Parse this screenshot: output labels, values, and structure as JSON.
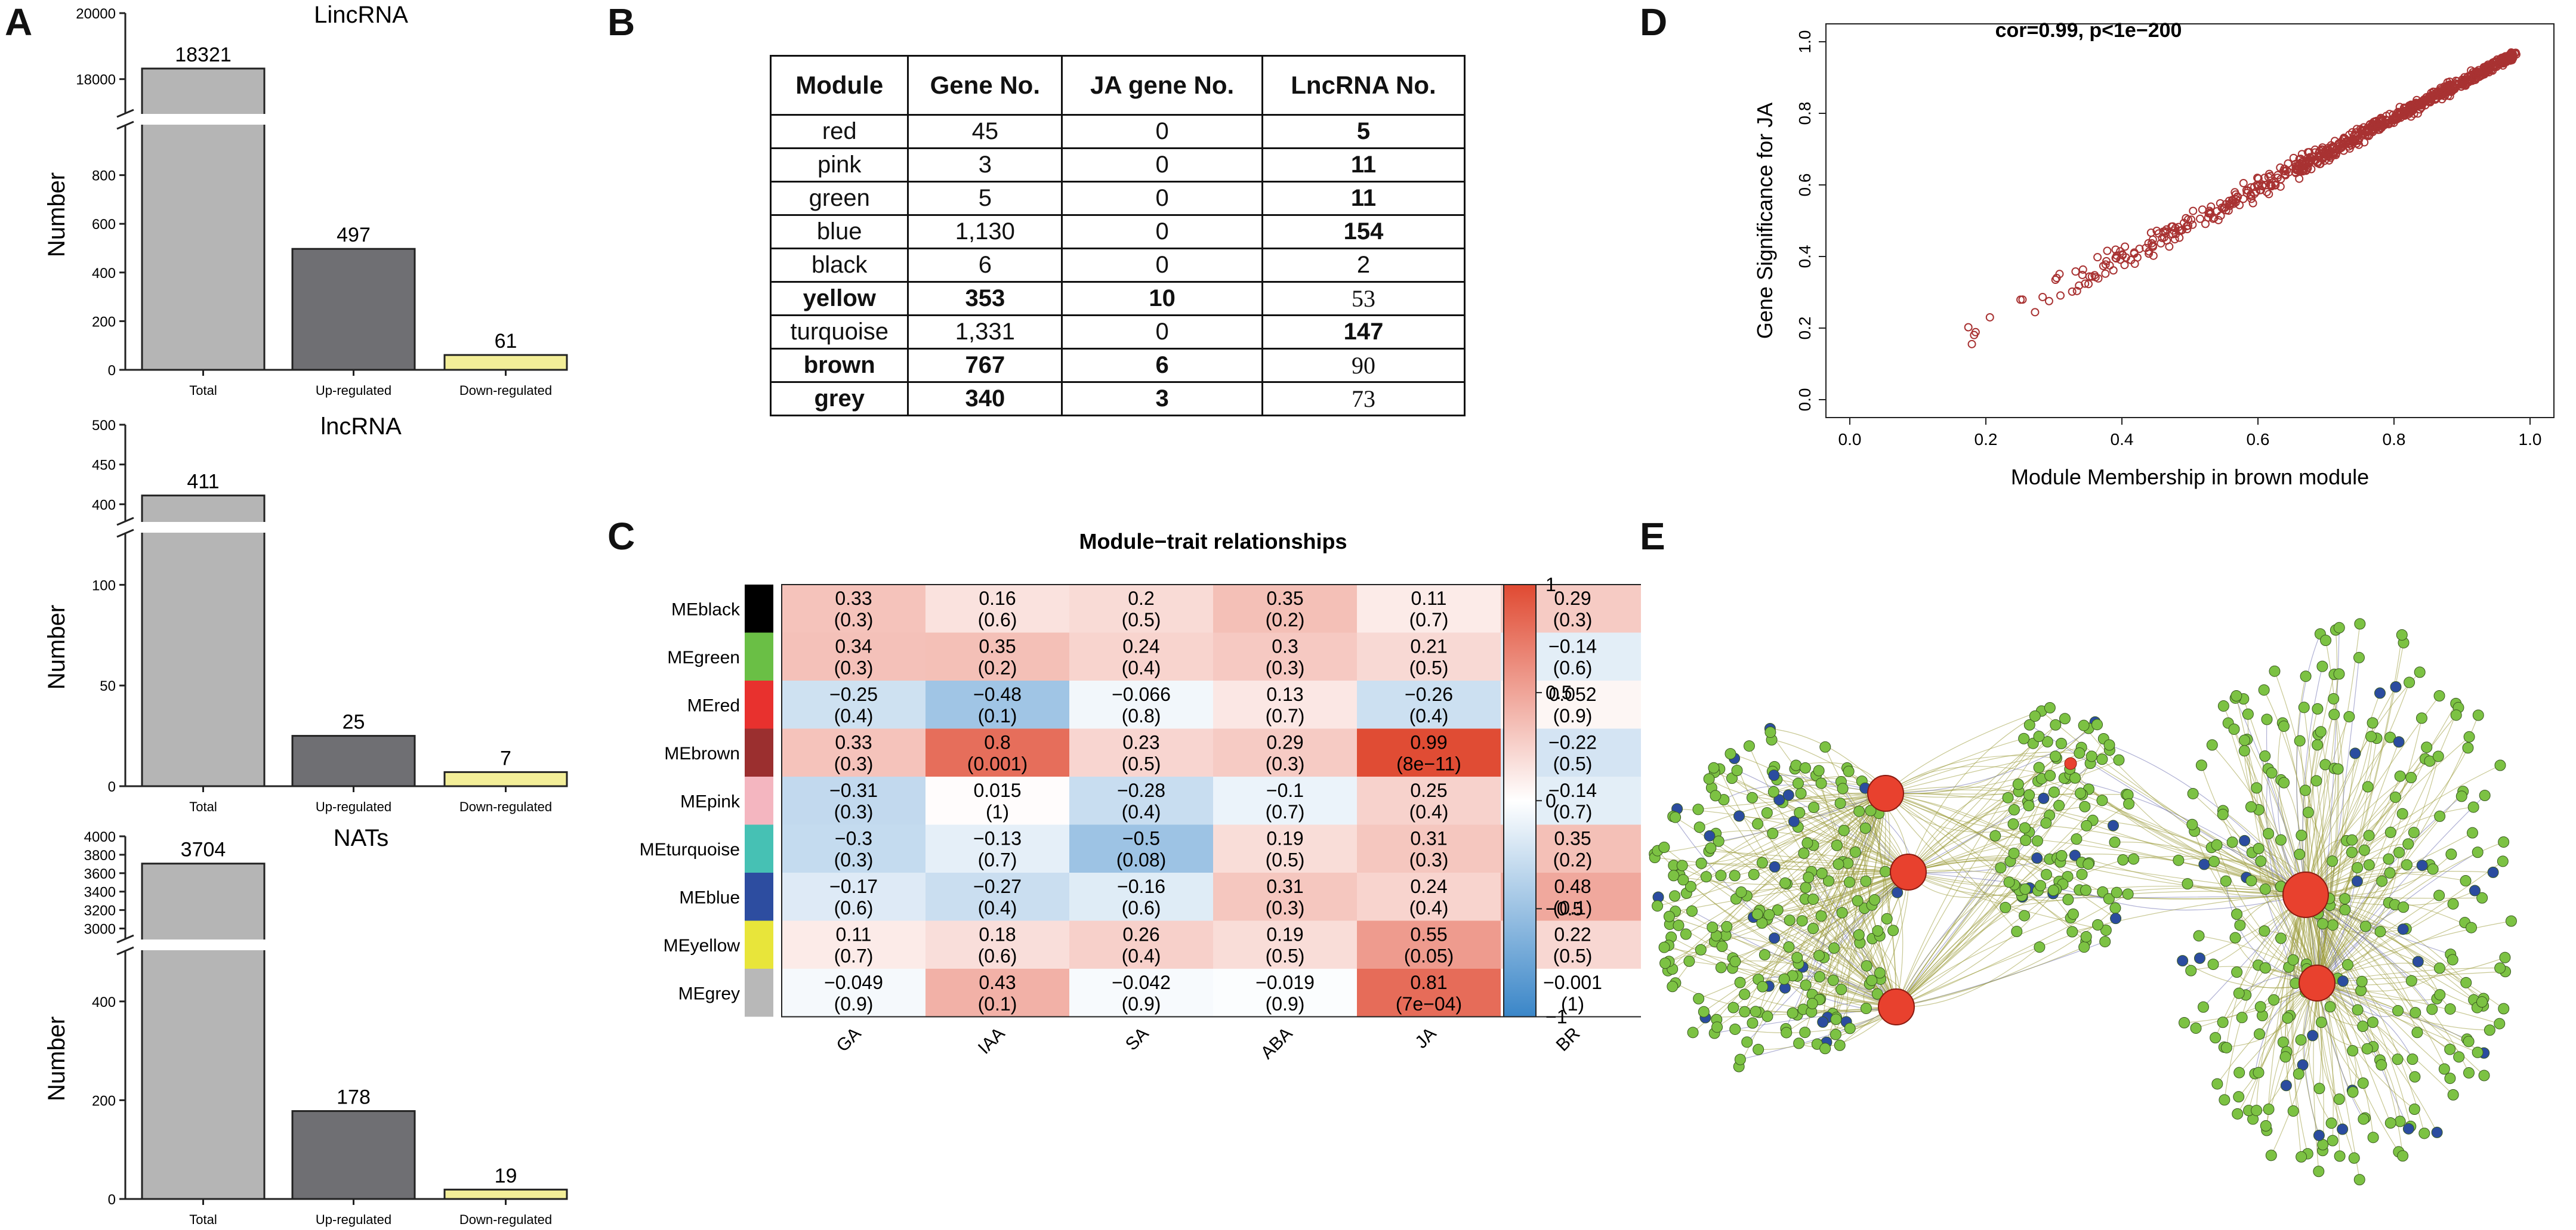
{
  "panels": {
    "A": "A",
    "B": "B",
    "C": "C",
    "D": "D",
    "E": "E"
  },
  "colors": {
    "bar_total": "#b5b5b5",
    "bar_up": "#6f6f73",
    "bar_down": "#f3ee98",
    "scatter": "#a83232",
    "heat_neg": "#3a86c8",
    "heat_pos": "#e04a32"
  },
  "chart_data": [
    {
      "type": "bar",
      "title": "LincRNA",
      "ylabel": "Number",
      "categories": [
        "Total",
        "Up-regulated",
        "Down-regulated"
      ],
      "values": [
        18321,
        497,
        61
      ],
      "y_broken": true,
      "upper_ticks": [
        18000,
        20000
      ],
      "lower_ticks": [
        0,
        200,
        400,
        600,
        800
      ]
    },
    {
      "type": "bar",
      "title": "lncRNA",
      "ylabel": "Number",
      "categories": [
        "Total",
        "Up-regulated",
        "Down-regulated"
      ],
      "values": [
        411,
        25,
        7
      ],
      "y_broken": true,
      "upper_ticks": [
        400,
        450,
        500
      ],
      "lower_ticks": [
        0,
        50,
        100
      ]
    },
    {
      "type": "bar",
      "title": "NATs",
      "ylabel": "Number",
      "categories": [
        "Total",
        "Up-regulated",
        "Down-regulated"
      ],
      "values": [
        3704,
        178,
        19
      ],
      "y_broken": true,
      "upper_ticks": [
        3000,
        3200,
        3400,
        3600,
        3800,
        4000
      ],
      "lower_ticks": [
        0,
        200,
        400
      ]
    },
    {
      "type": "table",
      "columns": [
        "Module",
        "Gene No.",
        "JA gene No.",
        "LncRNA No."
      ],
      "rows": [
        [
          "red",
          "45",
          "0",
          "5"
        ],
        [
          "pink",
          "3",
          "0",
          "11"
        ],
        [
          "green",
          "5",
          "0",
          "11"
        ],
        [
          "blue",
          "1,130",
          "0",
          "154"
        ],
        [
          "black",
          "6",
          "0",
          "2"
        ],
        [
          "yellow",
          "353",
          "10",
          "53"
        ],
        [
          "turquoise",
          "1,331",
          "0",
          "147"
        ],
        [
          "brown",
          "767",
          "6",
          "90"
        ],
        [
          "grey",
          "340",
          "3",
          "73"
        ]
      ]
    },
    {
      "type": "heatmap",
      "title": "Module−trait relationships",
      "rows": [
        "MEblack",
        "MEgreen",
        "MEred",
        "MEbrown",
        "MEpink",
        "MEturquoise",
        "MEblue",
        "MEyellow",
        "MEgrey"
      ],
      "row_colors": [
        "#000000",
        "#6abf45",
        "#e8312e",
        "#9b2f2f",
        "#f4b6c0",
        "#46c1b4",
        "#2d4da0",
        "#e8e53a",
        "#b8b8b8"
      ],
      "cols": [
        "GA",
        "IAA",
        "SA",
        "ABA",
        "JA",
        "BR"
      ],
      "values": [
        [
          0.33,
          0.16,
          0.2,
          0.35,
          0.11,
          0.29
        ],
        [
          0.34,
          0.35,
          0.24,
          0.3,
          0.21,
          -0.14
        ],
        [
          -0.25,
          -0.48,
          -0.066,
          0.13,
          -0.26,
          0.052
        ],
        [
          0.33,
          0.8,
          0.23,
          0.29,
          0.99,
          -0.22
        ],
        [
          -0.31,
          0.015,
          -0.28,
          -0.1,
          0.25,
          -0.14
        ],
        [
          -0.3,
          -0.13,
          -0.5,
          0.19,
          0.31,
          0.35
        ],
        [
          -0.17,
          -0.27,
          -0.16,
          0.31,
          0.24,
          0.48
        ],
        [
          0.11,
          0.18,
          0.26,
          0.19,
          0.55,
          0.22
        ],
        [
          -0.049,
          0.43,
          -0.042,
          -0.019,
          0.81,
          -0.001
        ]
      ],
      "labels": [
        [
          "0.33",
          "0.16",
          "0.2",
          "0.35",
          "0.11",
          "0.29"
        ],
        [
          "0.34",
          "0.35",
          "0.24",
          "0.3",
          "0.21",
          "−0.14"
        ],
        [
          "−0.25",
          "−0.48",
          "−0.066",
          "0.13",
          "−0.26",
          "0.052"
        ],
        [
          "0.33",
          "0.8",
          "0.23",
          "0.29",
          "0.99",
          "−0.22"
        ],
        [
          "−0.31",
          "0.015",
          "−0.28",
          "−0.1",
          "0.25",
          "−0.14"
        ],
        [
          "−0.3",
          "−0.13",
          "−0.5",
          "0.19",
          "0.31",
          "0.35"
        ],
        [
          "−0.17",
          "−0.27",
          "−0.16",
          "0.31",
          "0.24",
          "0.48"
        ],
        [
          "0.11",
          "0.18",
          "0.26",
          "0.19",
          "0.55",
          "0.22"
        ],
        [
          "−0.049",
          "0.43",
          "−0.042",
          "−0.019",
          "0.81",
          "−0.001"
        ]
      ],
      "pvalues": [
        [
          "(0.3)",
          "(0.6)",
          "(0.5)",
          "(0.2)",
          "(0.7)",
          "(0.3)"
        ],
        [
          "(0.3)",
          "(0.2)",
          "(0.4)",
          "(0.3)",
          "(0.5)",
          "(0.6)"
        ],
        [
          "(0.4)",
          "(0.1)",
          "(0.8)",
          "(0.7)",
          "(0.4)",
          "(0.9)"
        ],
        [
          "(0.3)",
          "(0.001)",
          "(0.5)",
          "(0.3)",
          "(8e−11)",
          "(0.5)"
        ],
        [
          "(0.3)",
          "(1)",
          "(0.4)",
          "(0.7)",
          "(0.4)",
          "(0.7)"
        ],
        [
          "(0.3)",
          "(0.7)",
          "(0.08)",
          "(0.5)",
          "(0.3)",
          "(0.2)"
        ],
        [
          "(0.6)",
          "(0.4)",
          "(0.6)",
          "(0.3)",
          "(0.4)",
          "(0.1)"
        ],
        [
          "(0.7)",
          "(0.6)",
          "(0.4)",
          "(0.5)",
          "(0.05)",
          "(0.5)"
        ],
        [
          "(0.9)",
          "(0.1)",
          "(0.9)",
          "(0.9)",
          "(7e−04)",
          "(1)"
        ]
      ],
      "legend_ticks": [
        1,
        0.5,
        0,
        -0.5,
        -1
      ],
      "legend_labels": [
        "1",
        "0.5",
        "0",
        "−0.5",
        "−1"
      ],
      "range": [
        -1,
        1
      ]
    },
    {
      "type": "scatter",
      "title": "cor=0.99, p<1e−200",
      "xlabel": "Module Membership in brown module",
      "ylabel": "Gene Significance for JA",
      "xlim": [
        0,
        1
      ],
      "ylim": [
        0,
        1
      ],
      "xticks": [
        0.0,
        0.2,
        0.4,
        0.6,
        0.8,
        1.0
      ],
      "yticks": [
        0.0,
        0.2,
        0.4,
        0.6,
        0.8,
        1.0
      ],
      "tick_labels": [
        "0.0",
        "0.2",
        "0.4",
        "0.6",
        "0.8",
        "1.0"
      ],
      "n_points": 767
    },
    {
      "type": "network",
      "hub_nodes": 5,
      "minor_red_nodes": 1,
      "node_colors": {
        "hub": "#e8412e",
        "green": "#7cc243",
        "blue": "#2b4c9f"
      }
    }
  ]
}
